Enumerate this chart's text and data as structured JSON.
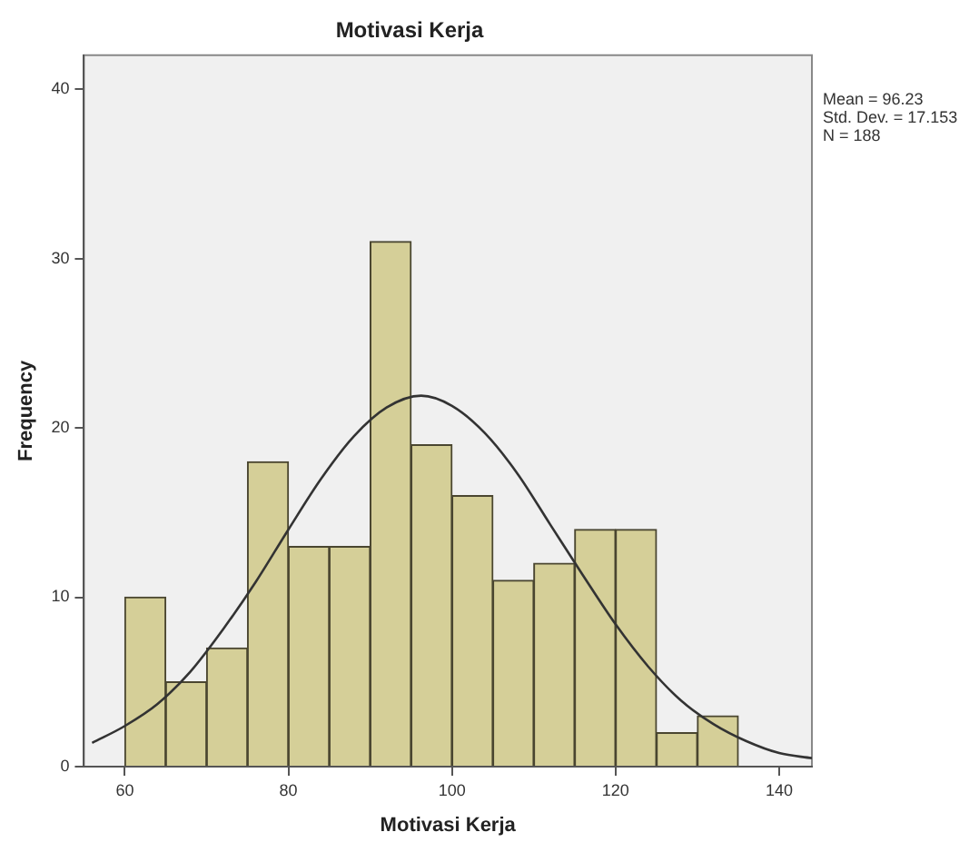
{
  "chart_data": {
    "type": "histogram",
    "title": "Motivasi Kerja",
    "xlabel": "Motivasi Kerja",
    "ylabel": "Frequency",
    "bins": [
      60,
      65,
      70,
      75,
      80,
      85,
      90,
      95,
      100,
      105,
      110,
      115,
      120,
      125,
      130,
      135
    ],
    "values": [
      10,
      5,
      7,
      18,
      13,
      13,
      31,
      19,
      16,
      11,
      12,
      14,
      14,
      2,
      3
    ],
    "color": "#d5cf98",
    "series": [
      {
        "type": "line",
        "color": "#333333",
        "x": [
          56,
          60,
          64,
          68,
          72,
          76,
          80,
          84,
          88,
          92,
          96.23,
          100,
          104,
          108,
          112,
          116,
          120,
          124,
          128,
          132,
          136,
          140,
          144
        ],
        "values": [
          1.4,
          2.4,
          3.7,
          5.6,
          8.1,
          10.9,
          14.0,
          17.0,
          19.5,
          21.2,
          21.9,
          21.3,
          19.7,
          17.3,
          14.3,
          11.3,
          8.4,
          5.9,
          3.9,
          2.5,
          1.5,
          0.8,
          0.5
        ]
      }
    ],
    "xlim": [
      55,
      144
    ],
    "xticks": [
      60,
      80,
      100,
      120,
      140
    ],
    "ylim": [
      0,
      42
    ],
    "yticks": [
      0,
      10,
      20,
      30,
      40
    ],
    "grid": false,
    "legend": false,
    "marker": "none",
    "line_style": "solid",
    "annotations": [
      "Mean = 96.23",
      "Std. Dev. = 17.153",
      "N = 188"
    ]
  }
}
